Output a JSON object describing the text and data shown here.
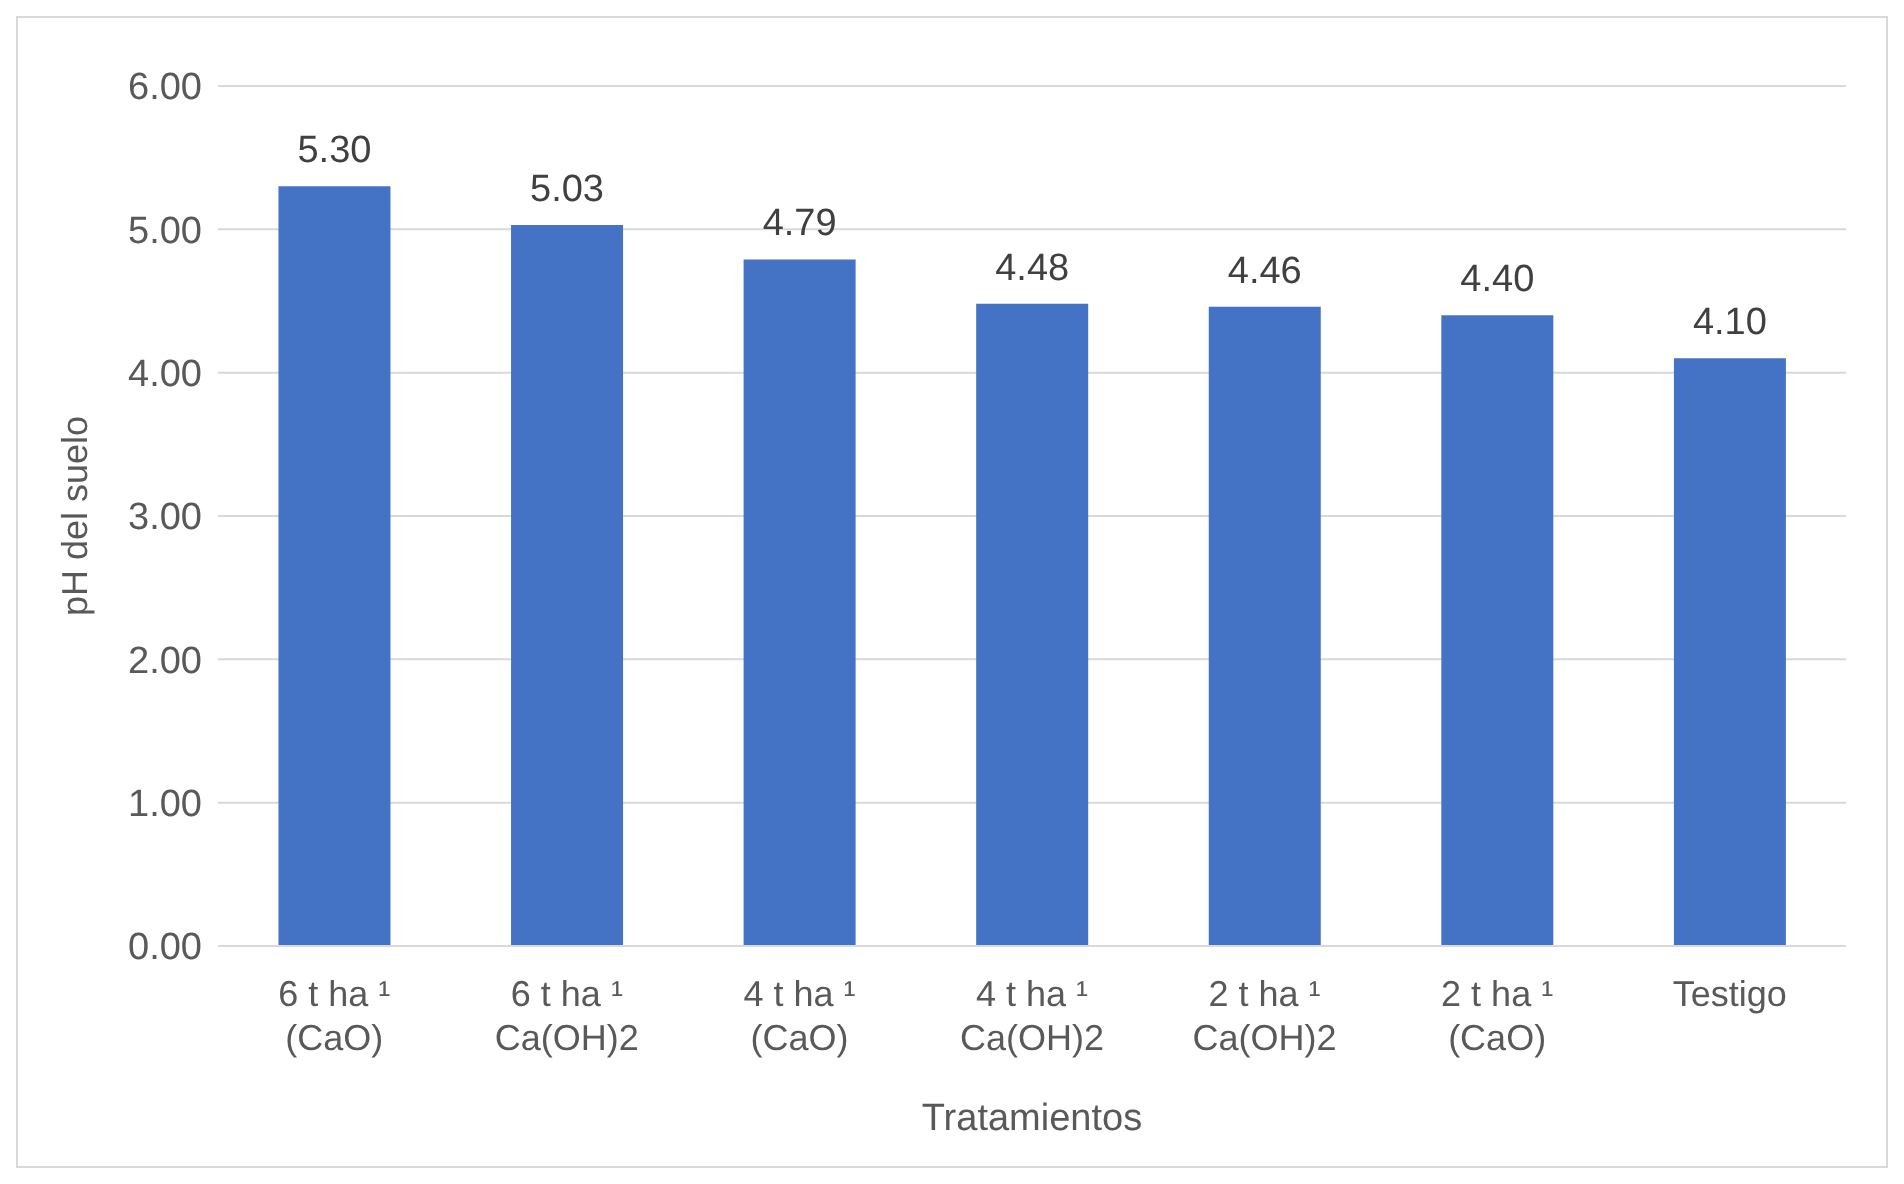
{
  "chart_data": {
    "type": "bar",
    "xlabel": "Tratamientos",
    "ylabel": "pH del suelo",
    "categories": [
      "6 t ha ¹\n(CaO)",
      "6 t ha ¹\nCa(OH)2",
      "4 t ha ¹\n(CaO)",
      "4 t ha ¹\nCa(OH)2",
      "2 t ha ¹\nCa(OH)2",
      "2 t ha ¹\n(CaO)",
      "Testigo"
    ],
    "values": [
      5.3,
      5.03,
      4.79,
      4.48,
      4.46,
      4.4,
      4.1
    ],
    "value_labels": [
      "5.30",
      "5.03",
      "4.79",
      "4.48",
      "4.46",
      "4.40",
      "4.10"
    ],
    "color": "#4472c4",
    "ylim": [
      0,
      6
    ],
    "yticks": [
      {
        "value": 0,
        "label": "0.00"
      },
      {
        "value": 1,
        "label": "1.00"
      },
      {
        "value": 2,
        "label": "2.00"
      },
      {
        "value": 3,
        "label": "3.00"
      },
      {
        "value": 4,
        "label": "4.00"
      },
      {
        "value": 5,
        "label": "5.00"
      },
      {
        "value": 6,
        "label": "6.00"
      }
    ],
    "grid": "y"
  }
}
